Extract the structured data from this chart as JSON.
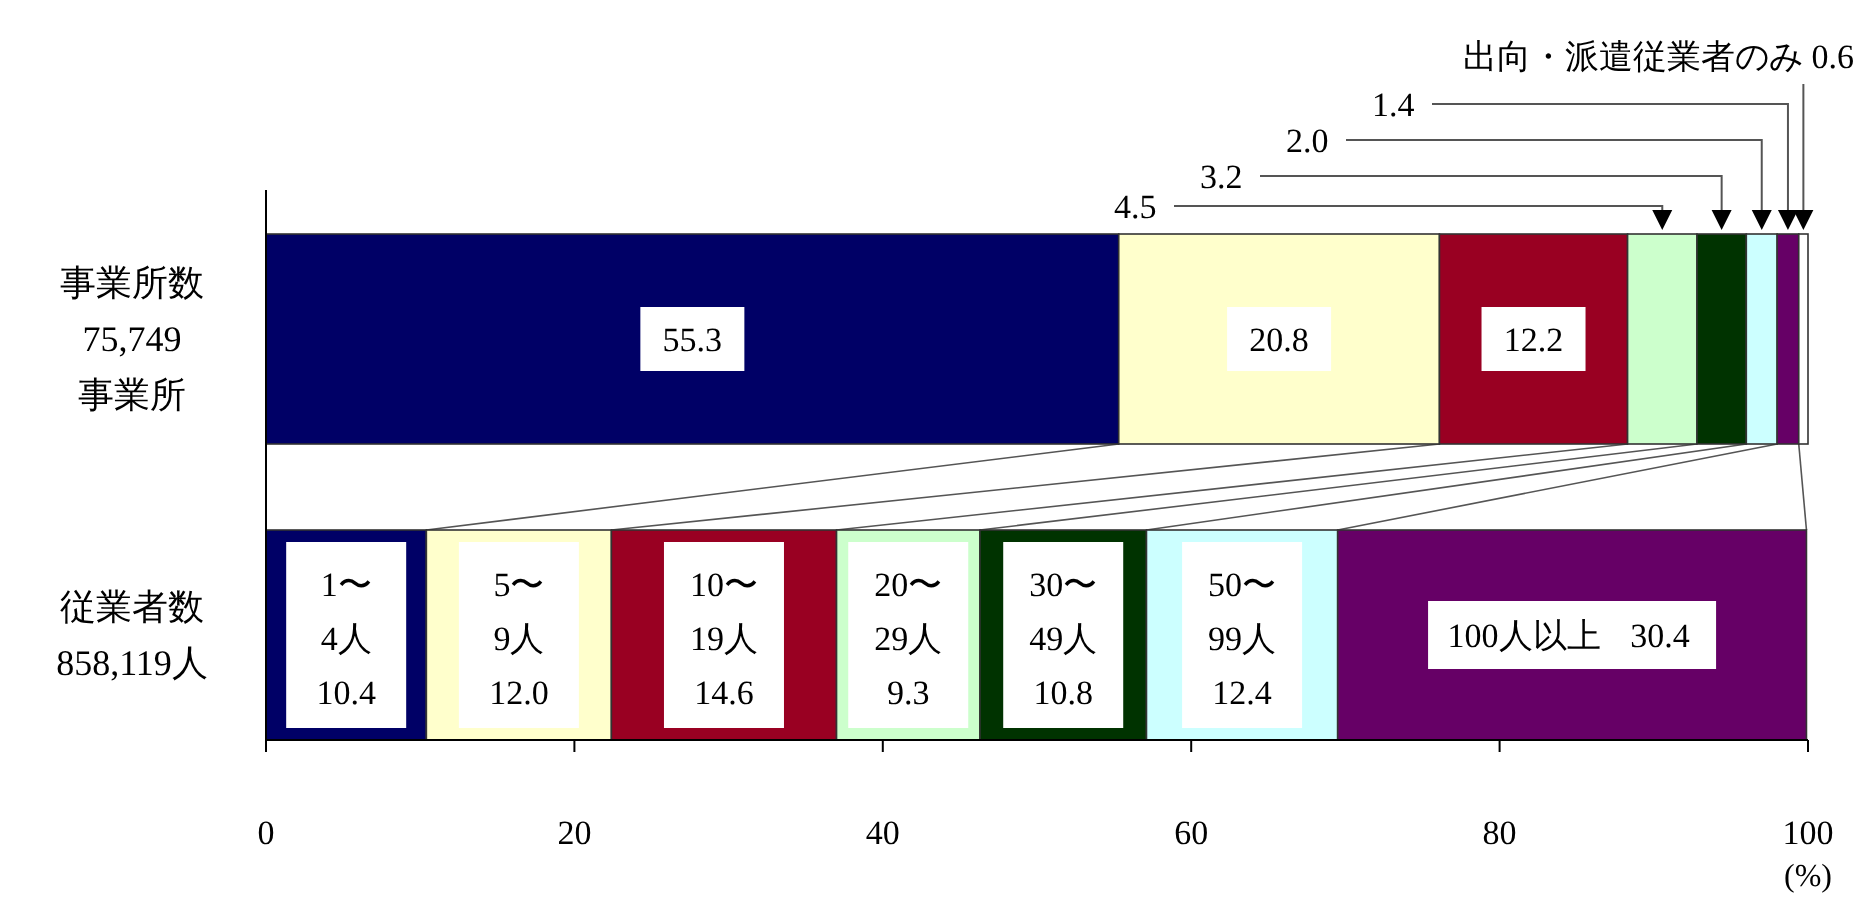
{
  "chart_data": {
    "type": "bar",
    "orientation": "horizontal",
    "stacked": true,
    "categories": [
      "事業所数\n75,749\n事業所",
      "従業者数\n858,119人"
    ],
    "series": [
      {
        "name": "1〜4人",
        "color": "#000066",
        "values": [
          55.3,
          10.4
        ],
        "value_labels": [
          "55.3",
          "10.4"
        ]
      },
      {
        "name": "5〜9人",
        "color": "#ffffcc",
        "values": [
          20.8,
          12.0
        ],
        "value_labels": [
          "20.8",
          "12.0"
        ]
      },
      {
        "name": "10〜19人",
        "color": "#990022",
        "values": [
          12.2,
          14.6
        ],
        "value_labels": [
          "12.2",
          "14.6"
        ]
      },
      {
        "name": "20〜29人",
        "color": "#ccffcc",
        "values": [
          4.5,
          9.3
        ],
        "value_labels": [
          null,
          "9.3"
        ]
      },
      {
        "name": "30〜49人",
        "color": "#003300",
        "values": [
          3.2,
          10.8
        ],
        "value_labels": [
          null,
          "10.8"
        ]
      },
      {
        "name": "50〜99人",
        "color": "#ccffff",
        "values": [
          2.0,
          12.4
        ],
        "value_labels": [
          null,
          "12.4"
        ]
      },
      {
        "name": "100人以上",
        "color": "#660066",
        "values": [
          1.4,
          30.4
        ],
        "value_labels": [
          null,
          "30.4"
        ]
      },
      {
        "color": "#ffffff",
        "values": [
          0.6,
          null
        ]
      }
    ],
    "annotations": [
      "4.5",
      "3.2",
      "2.0",
      "1.4",
      "出向・派遣従業者のみ 0.6"
    ],
    "xlim": [
      0,
      100
    ],
    "xticks": [
      0,
      20,
      40,
      60,
      80,
      100
    ],
    "xlabel": "(%)"
  }
}
